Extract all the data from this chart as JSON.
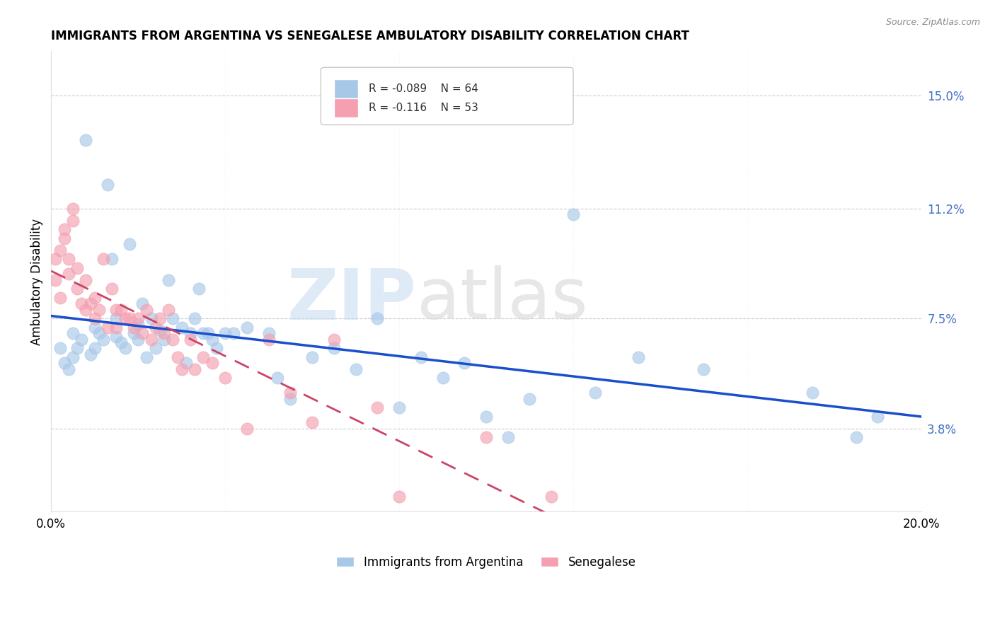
{
  "title": "IMMIGRANTS FROM ARGENTINA VS SENEGALESE AMBULATORY DISABILITY CORRELATION CHART",
  "source": "Source: ZipAtlas.com",
  "ylabel": "Ambulatory Disability",
  "yticks": [
    3.8,
    7.5,
    11.2,
    15.0
  ],
  "xlim": [
    0.0,
    20.0
  ],
  "ylim": [
    1.0,
    16.5
  ],
  "legend1_label": "Immigrants from Argentina",
  "legend2_label": "Senegalese",
  "r1": "-0.089",
  "n1": "64",
  "r2": "-0.116",
  "n2": "53",
  "color_blue": "#A8C8E8",
  "color_pink": "#F4A0B0",
  "trend_blue": "#1A4FCC",
  "trend_pink": "#CC4466",
  "watermark_zip": "ZIP",
  "watermark_atlas": "atlas",
  "argentina_x": [
    0.2,
    0.3,
    0.4,
    0.5,
    0.5,
    0.6,
    0.7,
    0.8,
    0.9,
    1.0,
    1.0,
    1.1,
    1.2,
    1.3,
    1.4,
    1.5,
    1.5,
    1.6,
    1.7,
    1.8,
    1.9,
    2.0,
    2.0,
    2.1,
    2.2,
    2.3,
    2.4,
    2.5,
    2.6,
    2.7,
    2.8,
    3.0,
    3.1,
    3.2,
    3.3,
    3.4,
    3.5,
    3.6,
    3.7,
    3.8,
    4.0,
    4.2,
    4.5,
    5.0,
    5.2,
    5.5,
    6.0,
    6.5,
    7.0,
    7.5,
    8.0,
    8.5,
    9.0,
    9.5,
    10.0,
    10.5,
    11.0,
    12.0,
    12.5,
    13.5,
    15.0,
    17.5,
    18.5,
    19.0
  ],
  "argentina_y": [
    6.5,
    6.0,
    5.8,
    6.2,
    7.0,
    6.5,
    6.8,
    13.5,
    6.3,
    6.5,
    7.2,
    7.0,
    6.8,
    12.0,
    9.5,
    7.5,
    6.9,
    6.7,
    6.5,
    10.0,
    7.0,
    6.8,
    7.3,
    8.0,
    6.2,
    7.5,
    6.5,
    7.1,
    6.8,
    8.8,
    7.5,
    7.2,
    6.0,
    7.0,
    7.5,
    8.5,
    7.0,
    7.0,
    6.8,
    6.5,
    7.0,
    7.0,
    7.2,
    7.0,
    5.5,
    4.8,
    6.2,
    6.5,
    5.8,
    7.5,
    4.5,
    6.2,
    5.5,
    6.0,
    4.2,
    3.5,
    4.8,
    11.0,
    5.0,
    6.2,
    5.8,
    5.0,
    3.5,
    4.2
  ],
  "senegalese_x": [
    0.1,
    0.1,
    0.2,
    0.2,
    0.3,
    0.3,
    0.4,
    0.4,
    0.5,
    0.5,
    0.6,
    0.6,
    0.7,
    0.8,
    0.8,
    0.9,
    1.0,
    1.0,
    1.1,
    1.2,
    1.3,
    1.4,
    1.5,
    1.5,
    1.6,
    1.7,
    1.8,
    1.9,
    2.0,
    2.1,
    2.2,
    2.3,
    2.4,
    2.5,
    2.6,
    2.7,
    2.8,
    2.9,
    3.0,
    3.2,
    3.3,
    3.5,
    3.7,
    4.0,
    4.5,
    5.0,
    5.5,
    6.0,
    6.5,
    7.5,
    8.0,
    10.0,
    11.5
  ],
  "senegalese_y": [
    9.5,
    8.8,
    8.2,
    9.8,
    10.2,
    10.5,
    9.5,
    9.0,
    11.2,
    10.8,
    8.5,
    9.2,
    8.0,
    8.8,
    7.8,
    8.0,
    7.5,
    8.2,
    7.8,
    9.5,
    7.2,
    8.5,
    7.2,
    7.8,
    7.8,
    7.5,
    7.5,
    7.2,
    7.5,
    7.0,
    7.8,
    6.8,
    7.2,
    7.5,
    7.0,
    7.8,
    6.8,
    6.2,
    5.8,
    6.8,
    5.8,
    6.2,
    6.0,
    5.5,
    3.8,
    6.8,
    5.0,
    4.0,
    6.8,
    4.5,
    1.5,
    3.5,
    1.5
  ]
}
